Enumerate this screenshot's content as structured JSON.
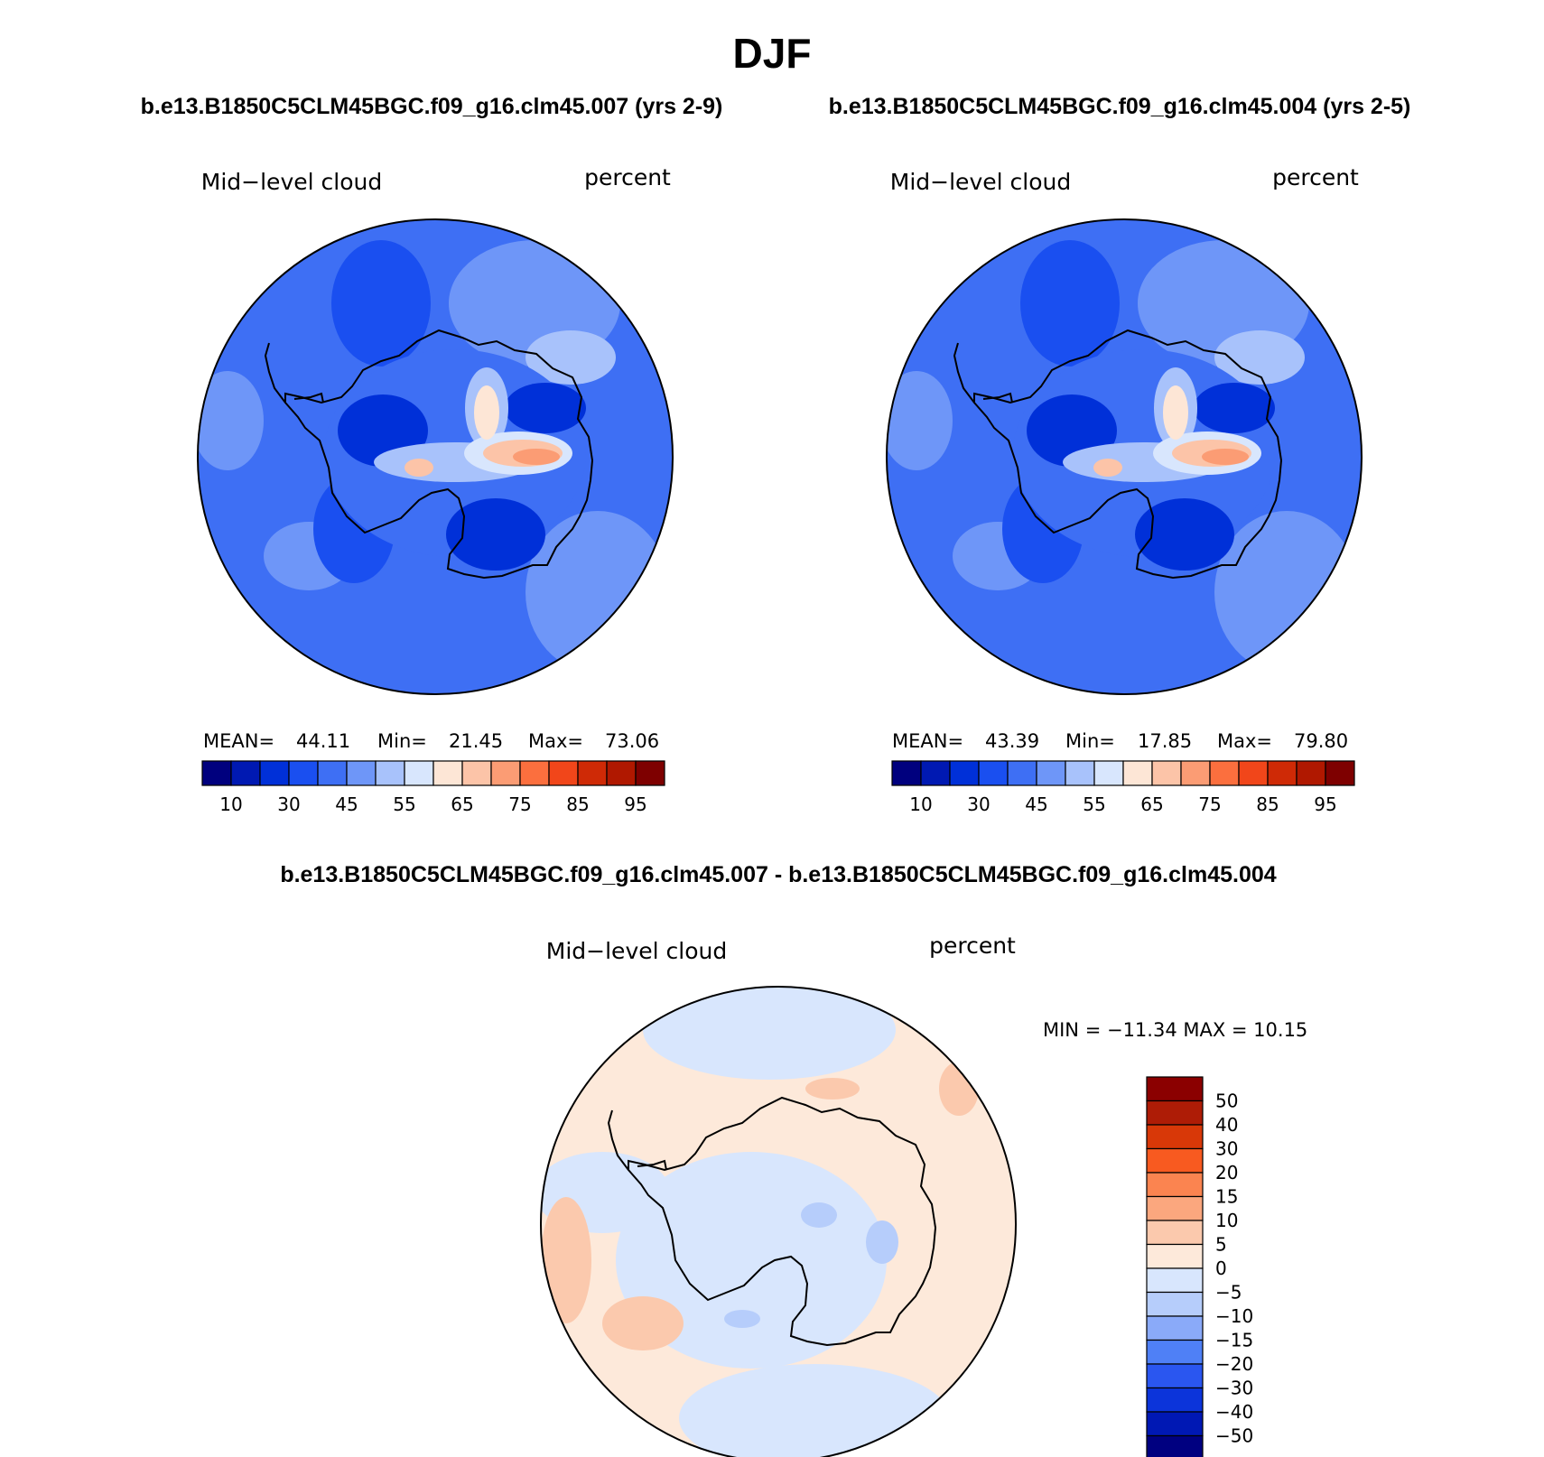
{
  "figure": {
    "season": "DJF",
    "case_a_title": "b.e13.B1850C5CLM45BGC.f09_g16.clm45.007 (yrs 2-9)",
    "case_b_title": "b.e13.B1850C5CLM45BGC.f09_g16.clm45.004 (yrs 2-5)",
    "diff_title": "b.e13.B1850C5CLM45BGC.f09_g16.clm45.007 - b.e13.B1850C5CLM45BGC.f09_g16.clm45.004"
  },
  "panels": [
    {
      "variable": "Mid−level cloud",
      "units": "percent",
      "mean_label": "MEAN=",
      "mean": "44.11",
      "min_label": "Min=",
      "min": "21.45",
      "max_label": "Max=",
      "max": "73.06"
    },
    {
      "variable": "Mid−level cloud",
      "units": "percent",
      "mean_label": "MEAN=",
      "mean": "43.39",
      "min_label": "Min=",
      "min": "17.85",
      "max_label": "Max=",
      "max": "79.80"
    }
  ],
  "diff_panel": {
    "variable": "Mid−level cloud",
    "units": "percent",
    "minmax_text": "MIN = −11.34 MAX =   10.15"
  },
  "colors": {
    "field_scale": [
      "#00007e",
      "#0019b2",
      "#0030d8",
      "#1a4ff0",
      "#3e6ff4",
      "#6e96f8",
      "#a8c2fb",
      "#d8e6fd",
      "#fde6d6",
      "#fcc4a8",
      "#fb9c74",
      "#fb6f3e",
      "#f1461a",
      "#cf2a06",
      "#b01800",
      "#7e0000"
    ],
    "field_scale_labels": [
      "10",
      "30",
      "45",
      "55",
      "65",
      "75",
      "85",
      "95"
    ],
    "diff_scale": [
      "#8b0000",
      "#ae1c06",
      "#d83808",
      "#f85a20",
      "#fb8450",
      "#fba77e",
      "#fbc9ad",
      "#fde9da",
      "#d8e6fd",
      "#b6cdfb",
      "#8aaaf9",
      "#4f80f6",
      "#2a56f0",
      "#0c34da",
      "#0018b4",
      "#000080"
    ],
    "diff_scale_labels": [
      "50",
      "40",
      "30",
      "20",
      "15",
      "10",
      "5",
      "0",
      "−5",
      "−10",
      "−15",
      "−20",
      "−30",
      "−40",
      "−50"
    ],
    "ocean_field": "#3e6ff4",
    "ocean_light": "#6e96f8",
    "diff_base": "#fde9da"
  }
}
